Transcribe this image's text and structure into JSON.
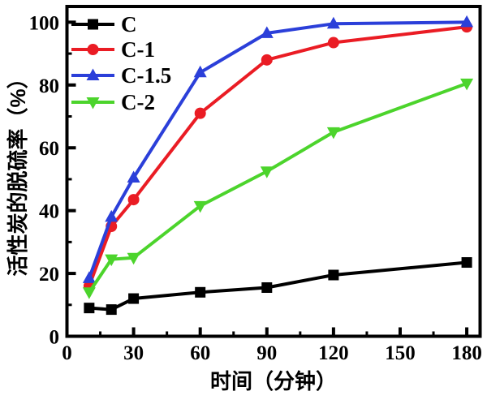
{
  "figure": {
    "background": "#ffffff",
    "frame_color": "#000000"
  },
  "chart_data": {
    "type": "line",
    "title": "",
    "xlabel": "时间（分钟）",
    "ylabel": "活性炭的脱硫率（%）",
    "xlim": [
      0,
      186
    ],
    "ylim": [
      0,
      105
    ],
    "x_major_ticks": [
      0,
      30,
      60,
      90,
      120,
      150,
      180
    ],
    "x_minor_ticks": [
      15,
      45,
      75,
      105,
      135,
      165
    ],
    "y_major_ticks": [
      0,
      20,
      40,
      60,
      80,
      100
    ],
    "y_minor_ticks": [
      10,
      30,
      50,
      70,
      90
    ],
    "grid": "off",
    "legend_position": "top-left-inside",
    "x": [
      10,
      20,
      30,
      60,
      90,
      120,
      180
    ],
    "series": [
      {
        "name": "C",
        "color": "#000000",
        "marker": "square",
        "values": [
          9,
          8.5,
          12,
          14,
          15.5,
          19.5,
          23.5
        ]
      },
      {
        "name": "C-1",
        "color": "#ea1c24",
        "marker": "circle",
        "values": [
          16,
          35,
          43.5,
          71,
          88,
          93.5,
          98.5
        ]
      },
      {
        "name": "C-1.5",
        "color": "#2b3fd9",
        "marker": "triangle-up",
        "values": [
          18.5,
          38,
          50.5,
          84,
          96.5,
          99.5,
          100
        ]
      },
      {
        "name": "C-2",
        "color": "#4cd42c",
        "marker": "triangle-down",
        "values": [
          14,
          24.5,
          25,
          41.5,
          52.5,
          65,
          80.5
        ]
      }
    ]
  }
}
